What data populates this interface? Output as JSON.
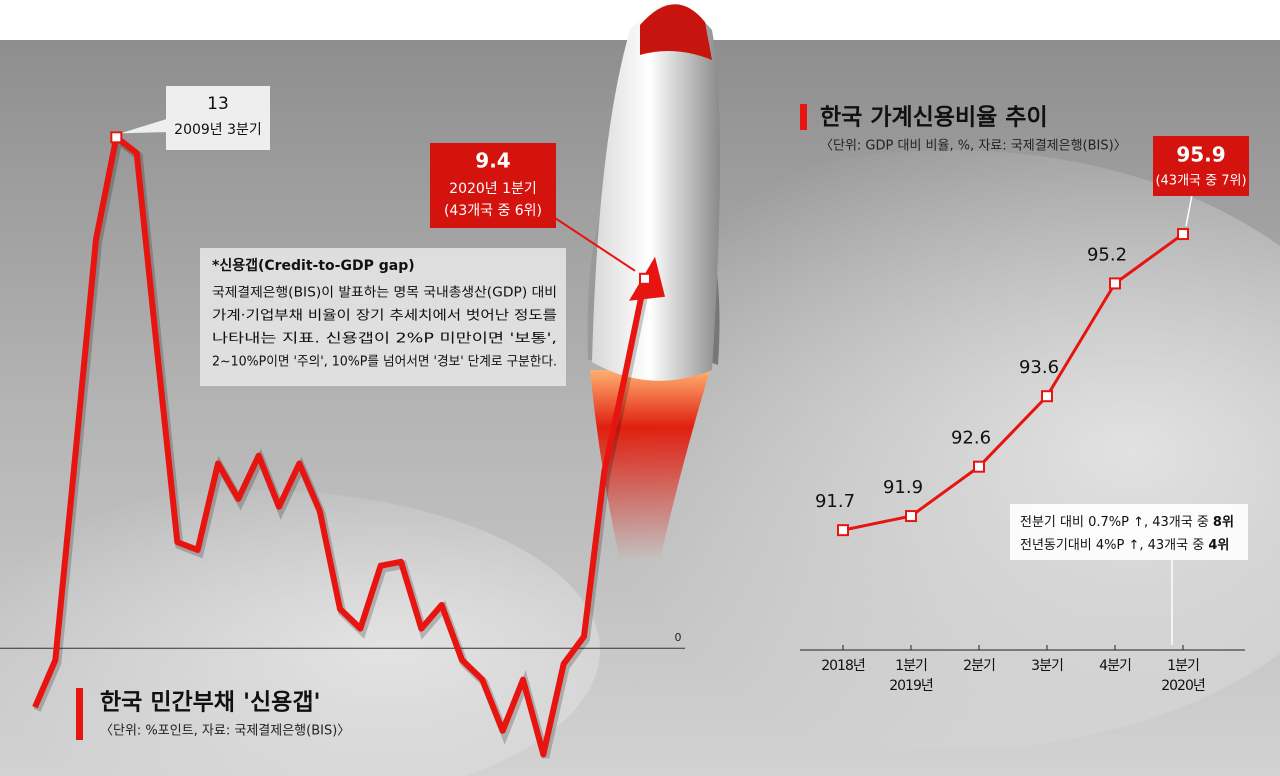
{
  "chart_data": [
    {
      "type": "line",
      "title": "한국 민간부채 '신용갭'",
      "subtitle": "〈단위: %포인트, 자료: 국제결제은행(BIS)〉",
      "categories": [
        null,
        null,
        null,
        null,
        null,
        null,
        null,
        null,
        null,
        null,
        null,
        null,
        null,
        null,
        null,
        null,
        null,
        null,
        null,
        null,
        null,
        null,
        null,
        null,
        null,
        null,
        null,
        null,
        null,
        null,
        null
      ],
      "values": [
        -1.5,
        -0.3,
        5.0,
        10.4,
        13,
        12.6,
        7.6,
        2.7,
        2.5,
        4.7,
        3.8,
        4.9,
        3.6,
        4.7,
        3.5,
        1.0,
        0.5,
        2.1,
        2.2,
        0.5,
        1.1,
        -0.3,
        -0.8,
        -2.1,
        -0.8,
        -2.7,
        -0.4,
        0.3,
        4.5,
        6.9,
        9.4
      ],
      "color": "#e8140f",
      "ylim": [
        -3.2,
        15.4
      ],
      "yticks": [
        0
      ],
      "peak_label": "2009년 3분기",
      "last_labels": [
        "2020년 1분기",
        "(43개국 중 6위)"
      ],
      "note": {
        "title": "*신용갭(Credit-to-GDP gap)",
        "lines": [
          "국제결제은행(BIS)이 발표하는 명목 국내총생산(GDP) 대비",
          "가계·기업부채 비율이 장기 추세치에서 벗어난 정도를",
          "나타내는 지표. 신용갭이 2%P 미만이면 '보통',",
          "2∼10%P이면 '주의', 10%P를 넘어서면 '경보' 단계로 구분한다."
        ]
      }
    },
    {
      "type": "line",
      "title": "한국 가계신용비율 추이",
      "subtitle": "〈단위: GDP 대비 비율, %, 자료: 국제결제은행(BIS)〉",
      "categories": [
        "2018년",
        "1분기\n2019년",
        "2분기",
        "3분기",
        "4분기",
        "1분기\n2020년"
      ],
      "values": [
        91.7,
        91.9,
        92.6,
        93.6,
        95.2,
        95.9
      ],
      "color": "#e8140f",
      "ylim": [
        90,
        98
      ],
      "last_labels": [
        "(43개국 중 7위)"
      ],
      "notes": [
        [
          "전분기 대비 0.7%P ↑, 43개국 중 ",
          "8위"
        ],
        [
          "전년동기대비 4%P ↑, 43개국 중 ",
          "4위"
        ]
      ]
    }
  ]
}
